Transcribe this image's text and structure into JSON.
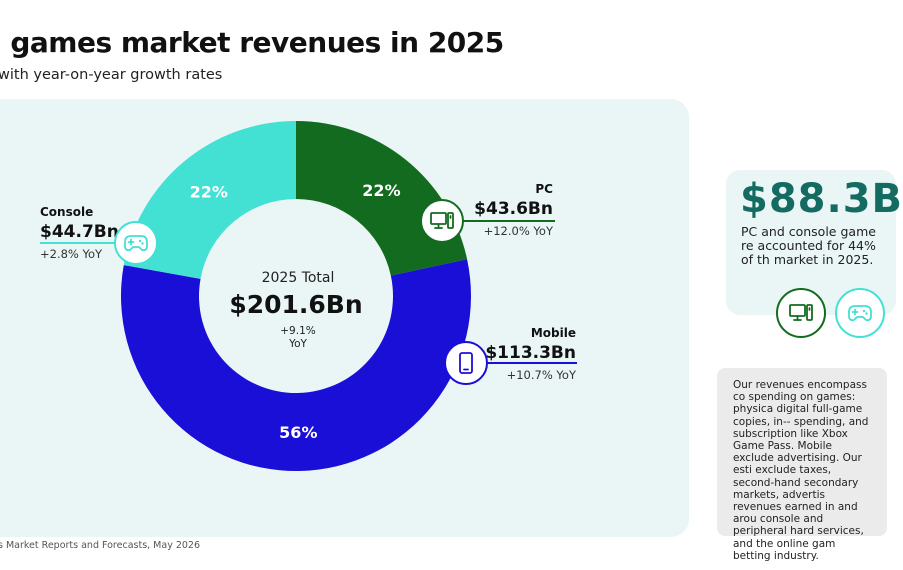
{
  "header": {
    "title": "l games market revenues in 2025",
    "subtitle": "with year-on-year growth rates"
  },
  "footer": {
    "source": "s Market Reports and Forecasts, May 2026"
  },
  "chart_data": {
    "type": "pie",
    "center": {
      "label": "2025 Total",
      "value": "$201.6Bn",
      "yoy_value": "+9.1%",
      "yoy_label": "YoY"
    },
    "categories": [
      "PC",
      "Mobile",
      "Console"
    ],
    "values": [
      43.6,
      113.3,
      44.7
    ],
    "percent_labels": [
      "22%",
      "56%",
      "22%"
    ],
    "value_labels": [
      "$43.6Bn",
      "$113.3Bn",
      "$44.7Bn"
    ],
    "yoy_labels": [
      "+12.0% YoY",
      "+10.7% YoY",
      "+2.8% YoY"
    ],
    "colors": [
      "#126b1e",
      "#1a0fd6",
      "#43e0d4"
    ],
    "icons": [
      "pc-monitor-icon",
      "mobile-phone-icon",
      "gamepad-icon"
    ]
  },
  "stat_card": {
    "value": "$88.3B",
    "text": "PC and console game re accounted for 44% of th market in 2025.",
    "icons": [
      "pc-monitor-icon",
      "gamepad-icon"
    ]
  },
  "note": {
    "text": "Our revenues encompass co spending on games: physica digital full-game copies, in-- spending, and subscription like Xbox Game Pass. Mobile exclude advertising. Our esti exclude taxes, second-hand secondary markets, advertis revenues earned in and arou console and peripheral hard services, and the online gam betting industry."
  }
}
